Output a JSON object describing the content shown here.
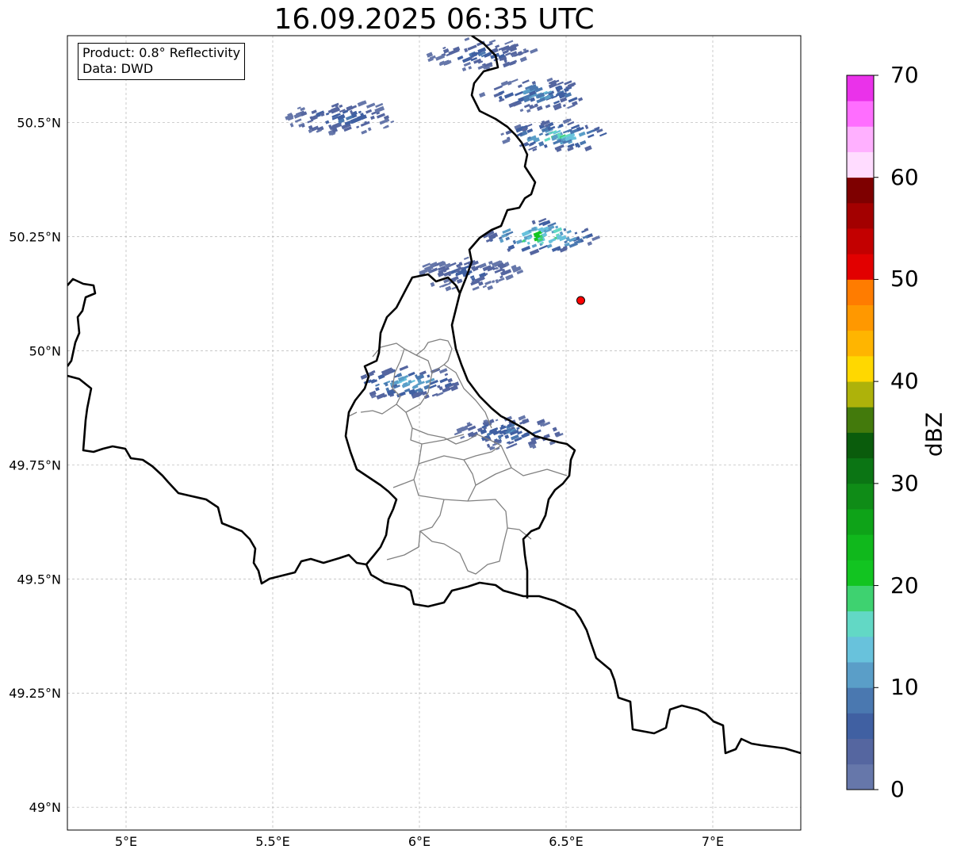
{
  "title": "16.09.2025 06:35 UTC",
  "info": {
    "product": "Product: 0.8° Reflectivity",
    "source": "Data: DWD"
  },
  "map": {
    "lon_range": [
      4.8,
      7.3
    ],
    "lat_range": [
      48.95,
      50.69
    ],
    "x_ticks": [
      {
        "value": 5.0,
        "label": "5°E"
      },
      {
        "value": 5.5,
        "label": "5.5°E"
      },
      {
        "value": 6.0,
        "label": "6°E"
      },
      {
        "value": 6.5,
        "label": "6.5°E"
      },
      {
        "value": 7.0,
        "label": "7°E"
      }
    ],
    "y_ticks": [
      {
        "value": 49.0,
        "label": "49°N"
      },
      {
        "value": 49.25,
        "label": "49.25°N"
      },
      {
        "value": 49.5,
        "label": "49.5°N"
      },
      {
        "value": 49.75,
        "label": "49.75°N"
      },
      {
        "value": 50.0,
        "label": "50°N"
      },
      {
        "value": 50.25,
        "label": "50.25°N"
      },
      {
        "value": 50.5,
        "label": "50.5°N"
      }
    ],
    "gridlines": true,
    "radar_site": {
      "lon": 6.55,
      "lat": 50.11,
      "color": "#ff0000"
    },
    "echo_clusters": [
      {
        "lon": 6.2,
        "lat": 50.65,
        "max_dbz": 10
      },
      {
        "lon": 6.39,
        "lat": 50.56,
        "max_dbz": 15
      },
      {
        "lon": 6.46,
        "lat": 50.47,
        "max_dbz": 20
      },
      {
        "lon": 6.4,
        "lat": 50.25,
        "max_dbz": 27
      },
      {
        "lon": 5.73,
        "lat": 50.51,
        "max_dbz": 10
      },
      {
        "lon": 5.95,
        "lat": 49.93,
        "max_dbz": 17
      },
      {
        "lon": 6.3,
        "lat": 49.82,
        "max_dbz": 12
      },
      {
        "lon": 6.15,
        "lat": 50.17,
        "max_dbz": 8
      }
    ]
  },
  "colorbar": {
    "label": "dBZ",
    "min": 0,
    "max": 70,
    "step": 2.5,
    "tick_labels": [
      "0",
      "10",
      "20",
      "30",
      "40",
      "50",
      "60",
      "70"
    ],
    "colors": [
      "#6677aa",
      "#5566a0",
      "#4060a2",
      "#4a78b0",
      "#5a9ec8",
      "#68c2dc",
      "#62d8c5",
      "#3ed270",
      "#12c421",
      "#10b81c",
      "#0ea318",
      "#0f8c17",
      "#0b7514",
      "#0a5c0c",
      "#437a0c",
      "#aeb20a",
      "#ffd800",
      "#ffb500",
      "#ff9800",
      "#ff7c00",
      "#e20000",
      "#c30000",
      "#a30000",
      "#7e0000",
      "#ffdcff",
      "#ffb0ff",
      "#ff6eff",
      "#ea32ea"
    ]
  }
}
